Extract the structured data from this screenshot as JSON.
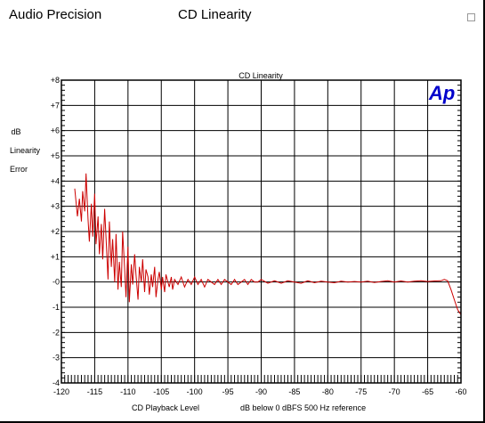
{
  "app": {
    "title": "Audio Precision",
    "document_title": "CD Linearity"
  },
  "chart_data": {
    "type": "line",
    "title": "CD Linearity",
    "xlabel": "CD Playback Level",
    "xlabel_note": "dB below 0 dBFS 500 Hz reference",
    "ylabel": "dB\n\nLinearity\n\nError",
    "xlim": [
      -120,
      -60
    ],
    "ylim": [
      -4,
      8
    ],
    "xticks": [
      -120,
      -115,
      -110,
      -105,
      -100,
      -95,
      -90,
      -85,
      -80,
      -75,
      -70,
      -65,
      -60
    ],
    "xtick_labels": [
      "-120",
      "-115",
      "-110",
      "-105",
      "-100",
      "-95",
      "-90",
      "-85",
      "-80",
      "-75",
      "-70",
      "-65",
      "-60"
    ],
    "yticks": [
      -4,
      -3,
      -2,
      -1,
      0,
      1,
      2,
      3,
      4,
      5,
      6,
      7,
      8
    ],
    "ytick_labels": [
      "-4",
      "-3",
      "-2",
      "-1",
      "-0",
      "+1",
      "+2",
      "+3",
      "+4",
      "+5",
      "+6",
      "+7",
      "+8"
    ],
    "grid": true,
    "logo": "Ap",
    "colors": {
      "series": "#cc0000",
      "logo": "#0000cc",
      "grid": "#000000"
    },
    "series": [
      {
        "x": [
          -118.0,
          -117.6,
          -117.3,
          -117.0,
          -116.8,
          -116.5,
          -116.3,
          -116.0,
          -115.8,
          -115.5,
          -115.3,
          -115.0,
          -114.8,
          -114.5,
          -114.3,
          -114.0,
          -113.8,
          -113.5,
          -113.2,
          -113.0,
          -112.8,
          -112.5,
          -112.3,
          -112.0,
          -111.8,
          -111.5,
          -111.3,
          -111.0,
          -110.8,
          -110.5,
          -110.3,
          -110.0,
          -109.8,
          -109.5,
          -109.3,
          -109.0,
          -108.8,
          -108.5,
          -108.3,
          -108.0,
          -107.8,
          -107.5,
          -107.3,
          -107.0,
          -106.8,
          -106.5,
          -106.3,
          -106.0,
          -105.8,
          -105.5,
          -105.3,
          -105.0,
          -104.8,
          -104.5,
          -104.3,
          -104.0,
          -103.8,
          -103.5,
          -103.3,
          -103.0,
          -102.5,
          -102.0,
          -101.5,
          -101.0,
          -100.5,
          -100.0,
          -99.5,
          -99.0,
          -98.5,
          -98.0,
          -97.5,
          -97.0,
          -96.5,
          -96.0,
          -95.5,
          -95.0,
          -94.5,
          -94.0,
          -93.5,
          -93.0,
          -92.5,
          -92.0,
          -91.5,
          -91.0,
          -90.5,
          -90.0,
          -89.0,
          -88.0,
          -87.0,
          -86.0,
          -85.0,
          -84.0,
          -83.0,
          -82.0,
          -81.0,
          -80.0,
          -79.0,
          -78.0,
          -77.0,
          -76.0,
          -75.0,
          -74.0,
          -73.0,
          -72.0,
          -71.0,
          -70.0,
          -69.0,
          -68.0,
          -67.0,
          -66.0,
          -65.0,
          -64.0,
          -63.0,
          -62.5,
          -62.0,
          -61.5,
          -61.0,
          -60.5,
          -60.0
        ],
        "y": [
          3.7,
          2.6,
          3.3,
          2.4,
          3.6,
          2.8,
          4.3,
          2.5,
          1.6,
          3.1,
          1.8,
          3.5,
          1.5,
          2.6,
          1.1,
          2.3,
          0.9,
          2.9,
          1.2,
          0.1,
          2.4,
          0.6,
          1.7,
          0.0,
          1.9,
          -0.3,
          0.8,
          -0.2,
          2.0,
          0.5,
          -0.6,
          1.4,
          -0.8,
          0.7,
          -0.1,
          1.1,
          0.3,
          -0.7,
          0.6,
          0.0,
          0.9,
          -0.4,
          0.5,
          0.2,
          -0.5,
          0.3,
          -0.2,
          0.6,
          -0.6,
          0.1,
          0.4,
          -0.3,
          0.2,
          -0.4,
          0.3,
          0.0,
          -0.2,
          0.2,
          -0.3,
          0.1,
          -0.1,
          0.2,
          -0.2,
          0.1,
          -0.1,
          0.2,
          -0.1,
          0.1,
          -0.2,
          0.1,
          0.0,
          -0.1,
          0.1,
          -0.1,
          0.1,
          0.0,
          -0.1,
          0.1,
          -0.1,
          0.0,
          0.1,
          -0.1,
          0.1,
          0.0,
          0.0,
          0.1,
          -0.05,
          0.05,
          -0.05,
          0.05,
          0.0,
          -0.05,
          0.05,
          -0.03,
          0.03,
          0.0,
          -0.03,
          0.03,
          0.0,
          0.02,
          0.0,
          0.03,
          -0.02,
          0.02,
          0.05,
          0.0,
          0.04,
          0.0,
          0.03,
          0.05,
          0.02,
          0.04,
          0.05,
          0.1,
          0.05,
          -0.3,
          -0.7,
          -1.1,
          -1.3
        ]
      }
    ]
  }
}
